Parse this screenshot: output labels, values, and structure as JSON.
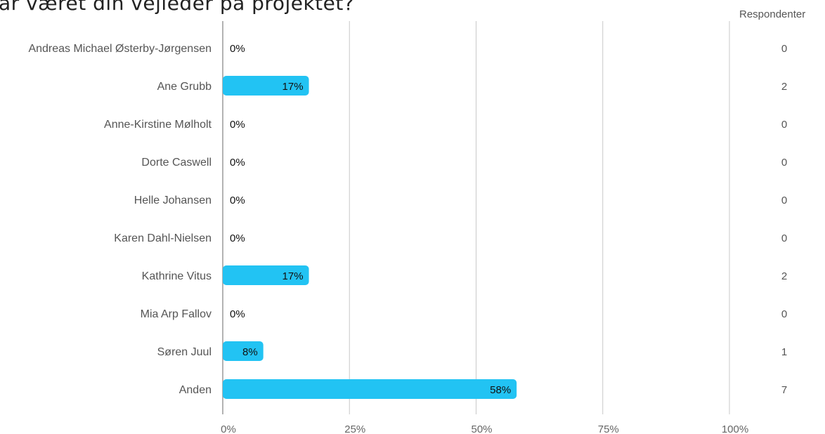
{
  "chart_data": {
    "type": "bar",
    "orientation": "horizontal",
    "title": "ar været din vejleder på projektet?",
    "categories": [
      "Andreas Michael Østerby-Jørgensen",
      "Ane Grubb",
      "Anne-Kirstine Mølholt",
      "Dorte Caswell",
      "Helle Johansen",
      "Karen Dahl-Nielsen",
      "Kathrine Vitus",
      "Mia Arp Fallov",
      "Søren Juul",
      "Anden"
    ],
    "values": [
      0,
      17,
      0,
      0,
      0,
      0,
      17,
      0,
      8,
      58
    ],
    "value_labels": [
      "0%",
      "17%",
      "0%",
      "0%",
      "0%",
      "0%",
      "17%",
      "0%",
      "8%",
      "58%"
    ],
    "respondents_header": "Respondenter",
    "respondents": [
      "0",
      "2",
      "0",
      "0",
      "0",
      "0",
      "2",
      "0",
      "1",
      "7"
    ],
    "xlim": [
      0,
      100
    ],
    "x_ticks": [
      "0%",
      "25%",
      "50%",
      "75%",
      "100%"
    ],
    "grid": true,
    "bar_color": "#22c3f3"
  }
}
